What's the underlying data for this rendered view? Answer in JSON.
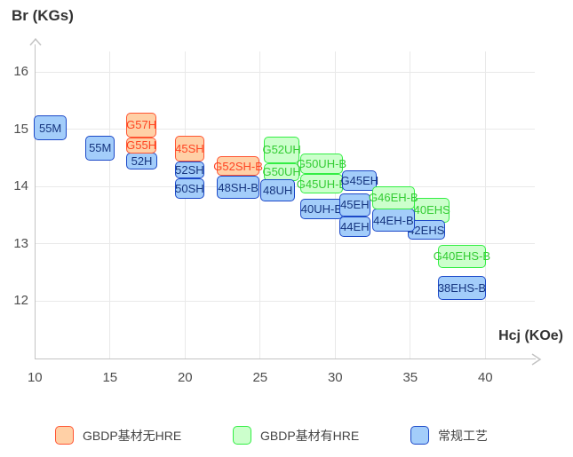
{
  "chart_data": {
    "type": "scatter",
    "title": "",
    "x_axis": {
      "label": "Hcj (KOe)",
      "ticks": [
        10,
        15,
        20,
        25,
        30,
        35,
        40
      ],
      "range": [
        10,
        43.5
      ]
    },
    "y_axis": {
      "label": "Br (KGs)",
      "ticks": [
        16,
        15,
        14,
        13,
        12
      ],
      "range": [
        11,
        16.6
      ]
    },
    "grid": true,
    "legend_position": "bottom",
    "boxes": [
      {
        "label": "55M",
        "series": "blue",
        "hcj": [
          9.95,
          12.1
        ],
        "br": [
          14.8,
          15.24
        ]
      },
      {
        "label": "55M",
        "series": "blue",
        "hcj": [
          13.36,
          15.33
        ],
        "br": [
          14.45,
          14.89
        ]
      },
      {
        "label": "52H",
        "series": "blue",
        "hcj": [
          16.1,
          18.13
        ],
        "br": [
          14.3,
          14.59
        ]
      },
      {
        "label": "G57H",
        "series": "orange",
        "hcj": [
          16.1,
          18.08
        ],
        "br": [
          14.85,
          15.29
        ]
      },
      {
        "label": "G55H",
        "series": "orange",
        "hcj": [
          16.1,
          18.08
        ],
        "br": [
          14.58,
          14.85
        ]
      },
      {
        "label": "50SH",
        "series": "blue",
        "hcj": [
          19.32,
          21.29
        ],
        "br": [
          13.78,
          14.14
        ]
      },
      {
        "label": "52SH",
        "series": "blue",
        "hcj": [
          19.32,
          21.29
        ],
        "br": [
          14.14,
          14.44
        ]
      },
      {
        "label": "45SH",
        "series": "orange",
        "hcj": [
          19.32,
          21.29
        ],
        "br": [
          14.44,
          14.88
        ]
      },
      {
        "label": "48SH-B",
        "series": "blue",
        "hcj": [
          22.14,
          24.94
        ],
        "br": [
          13.78,
          14.18
        ]
      },
      {
        "label": "G52SH-B",
        "series": "orange",
        "hcj": [
          22.14,
          24.94
        ],
        "br": [
          14.18,
          14.52
        ]
      },
      {
        "label": "G52UH",
        "series": "green",
        "hcj": [
          25.27,
          27.61
        ],
        "br": [
          14.41,
          14.87
        ]
      },
      {
        "label": "G50UH",
        "series": "green",
        "hcj": [
          25.27,
          27.61
        ],
        "br": [
          14.1,
          14.41
        ]
      },
      {
        "label": "48UH",
        "series": "blue",
        "hcj": [
          25.04,
          27.31
        ],
        "br": [
          13.74,
          14.13
        ]
      },
      {
        "label": "G50UH-B",
        "series": "green",
        "hcj": [
          27.67,
          30.51
        ],
        "br": [
          14.22,
          14.57
        ]
      },
      {
        "label": "G45UH-B",
        "series": "green",
        "hcj": [
          27.67,
          30.51
        ],
        "br": [
          13.87,
          14.22
        ]
      },
      {
        "label": "40UH-B",
        "series": "blue",
        "hcj": [
          27.67,
          30.51
        ],
        "br": [
          13.43,
          13.79
        ]
      },
      {
        "label": "44EH",
        "series": "blue",
        "hcj": [
          30.27,
          32.34
        ],
        "br": [
          13.12,
          13.48
        ]
      },
      {
        "label": "45EH",
        "series": "blue",
        "hcj": [
          30.27,
          32.34
        ],
        "br": [
          13.48,
          13.87
        ]
      },
      {
        "label": "G45EH",
        "series": "blue",
        "hcj": [
          30.47,
          32.79
        ],
        "br": [
          13.92,
          14.28
        ]
      },
      {
        "label": "40EHS",
        "series": "green",
        "hcj": [
          35.26,
          37.63
        ],
        "br": [
          13.37,
          13.8
        ]
      },
      {
        "label": "42EHS",
        "series": "blue",
        "hcj": [
          34.81,
          37.32
        ],
        "br": [
          13.07,
          13.41
        ]
      },
      {
        "label": "44EH-B",
        "series": "blue",
        "hcj": [
          32.44,
          35.32
        ],
        "br": [
          13.21,
          13.61
        ]
      },
      {
        "label": "G46EH-B",
        "series": "green",
        "hcj": [
          32.44,
          35.32
        ],
        "br": [
          13.6,
          14.0
        ]
      },
      {
        "label": "G40EHS-B",
        "series": "green",
        "hcj": [
          36.84,
          40.04
        ],
        "br": [
          12.58,
          12.98
        ]
      },
      {
        "label": "38EHS-B",
        "series": "blue",
        "hcj": [
          36.84,
          40.04
        ],
        "br": [
          12.02,
          12.43
        ]
      }
    ]
  },
  "legend": {
    "items": [
      {
        "key": "orange",
        "label": "GBDP基材无HRE"
      },
      {
        "key": "green",
        "label": "GBDP基材有HRE"
      },
      {
        "key": "blue",
        "label": "常规工艺"
      }
    ]
  },
  "colors": {
    "orange": {
      "fill": "#ffd0a6",
      "border": "#ff5533",
      "text": "#ff4422"
    },
    "green": {
      "fill": "#ccffcc",
      "border": "#33ee44",
      "text": "#33cc33"
    },
    "blue": {
      "fill": "#a3cdfa",
      "border": "#1c49c8",
      "text": "#16357f"
    },
    "grid": "#e9e9e9",
    "axis": "#c3c3c3",
    "tick_text": "#4d4d4d",
    "title_text": "#333333"
  }
}
